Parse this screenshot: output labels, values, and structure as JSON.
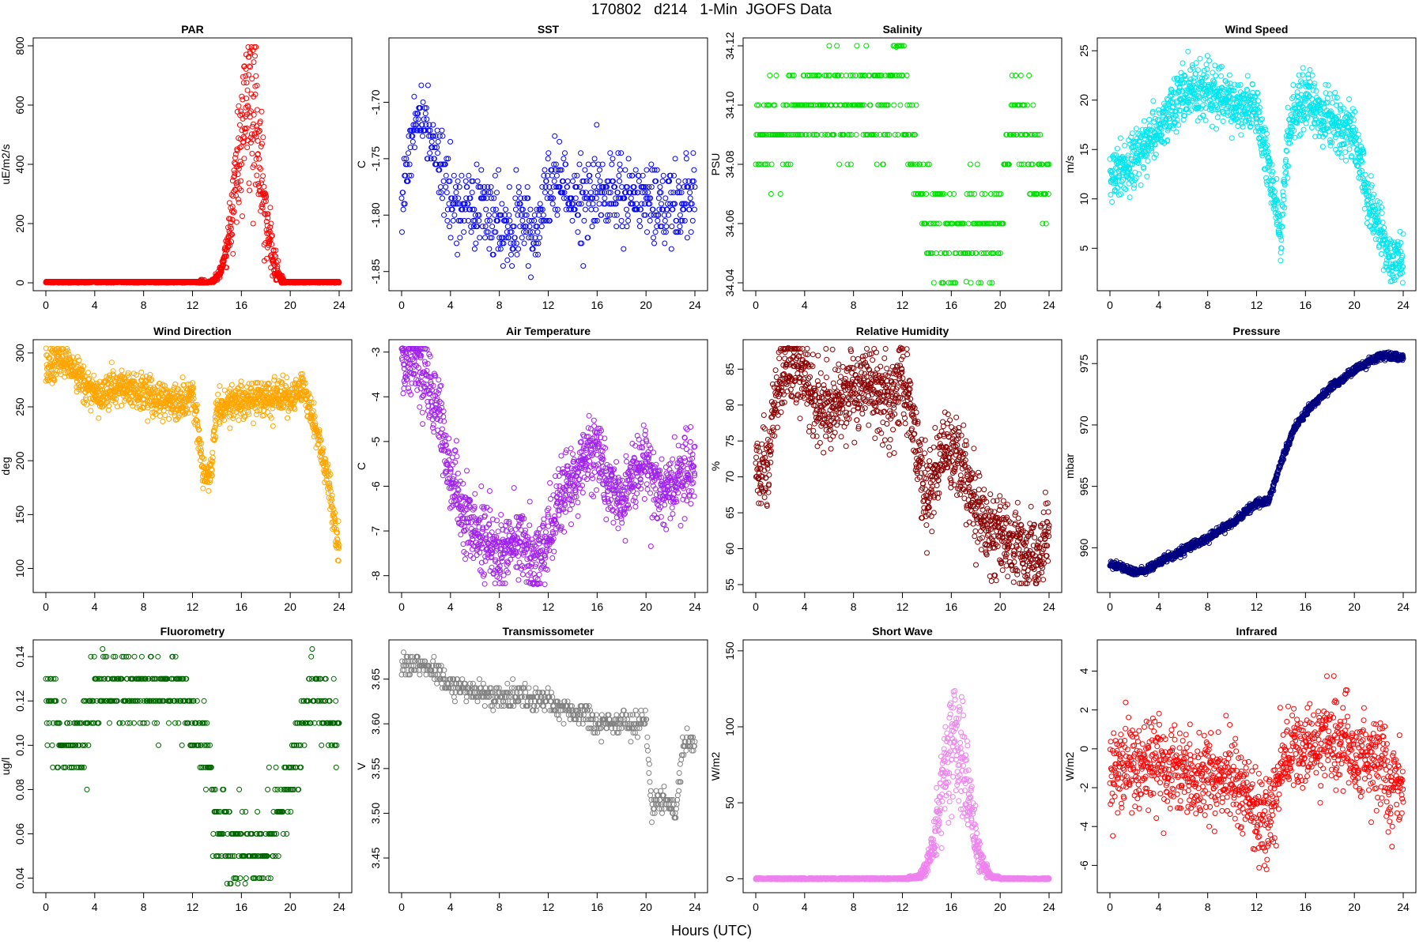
{
  "figure": {
    "title": "170802   d214   1-Min  JGOFS Data",
    "common_xlabel": "Hours (UTC)"
  },
  "chart_data": [
    {
      "type": "scatter",
      "title": "PAR",
      "ylabel": "uE/m2/s",
      "xlabel": "",
      "color": "#ff0000",
      "xlim": [
        0,
        24
      ],
      "ylim": [
        0,
        800
      ],
      "xticks": [
        0,
        4,
        8,
        12,
        16,
        20,
        24
      ],
      "yticks": [
        0,
        200,
        400,
        600,
        800
      ],
      "ytick_labels": [
        "0",
        "200",
        "400",
        "600",
        "800"
      ],
      "points": {
        "mode": "diurnal",
        "base": 0,
        "start": 12.5,
        "end": 19.5,
        "peak": 16.8,
        "amp": 650,
        "noise": 140,
        "spread": 1.6,
        "n": 1440
      }
    },
    {
      "type": "scatter",
      "title": "SST",
      "ylabel": "C",
      "xlabel": "",
      "color": "#0000ff",
      "xlim": [
        0,
        24
      ],
      "ylim": [
        -1.86,
        -1.65
      ],
      "xticks": [
        0,
        4,
        8,
        12,
        16,
        20,
        24
      ],
      "yticks": [
        -1.85,
        -1.8,
        -1.75,
        -1.7
      ],
      "ytick_labels": [
        "-1.85",
        "-1.80",
        "-1.75",
        "-1.70"
      ],
      "points": {
        "mode": "series",
        "x": [
          0,
          1,
          2,
          3,
          4,
          6,
          8,
          10,
          11,
          12,
          13,
          14,
          16,
          18,
          20,
          22,
          24
        ],
        "y": [
          -1.79,
          -1.72,
          -1.72,
          -1.74,
          -1.79,
          -1.79,
          -1.81,
          -1.81,
          -1.82,
          -1.78,
          -1.76,
          -1.79,
          -1.78,
          -1.78,
          -1.79,
          -1.79,
          -1.78
        ],
        "noise": 0.04,
        "quant": 0.005,
        "n": 700
      }
    },
    {
      "type": "scatter",
      "title": "Salinity",
      "ylabel": "PSU",
      "xlabel": "",
      "color": "#00dd00",
      "xlim": [
        0,
        24
      ],
      "ylim": [
        34.04,
        34.12
      ],
      "xticks": [
        0,
        4,
        8,
        12,
        16,
        20,
        24
      ],
      "yticks": [
        34.04,
        34.06,
        34.08,
        34.1,
        34.12
      ],
      "ytick_labels": [
        "34.04",
        "34.06",
        "34.08",
        "34.10",
        "34.12"
      ],
      "points": {
        "mode": "series",
        "x": [
          0,
          2,
          4,
          8,
          10,
          12,
          13,
          14,
          16,
          18,
          20,
          21,
          22,
          24
        ],
        "y": [
          34.09,
          34.09,
          34.1,
          34.1,
          34.1,
          34.11,
          34.08,
          34.06,
          34.055,
          34.06,
          34.06,
          34.1,
          34.09,
          34.07
        ],
        "noise": 0.02,
        "quant": 0.01,
        "n": 500
      }
    },
    {
      "type": "scatter",
      "title": "Wind Speed",
      "ylabel": "m/s",
      "xlabel": "",
      "color": "#00e5ee",
      "xlim": [
        0,
        24
      ],
      "ylim": [
        1.5,
        25.5
      ],
      "xticks": [
        0,
        4,
        8,
        12,
        16,
        20,
        24
      ],
      "yticks": [
        5,
        10,
        15,
        20,
        25
      ],
      "ytick_labels": [
        "5",
        "10",
        "15",
        "20",
        "25"
      ],
      "points": {
        "mode": "series",
        "x": [
          0,
          2,
          4,
          6,
          8,
          10,
          12,
          13,
          14,
          14.5,
          15,
          16,
          18,
          20,
          21,
          22,
          23,
          24
        ],
        "y": [
          12,
          14,
          17,
          21,
          21,
          20,
          19,
          13,
          6,
          15,
          19,
          20,
          18,
          16,
          11,
          7,
          4,
          4
        ],
        "noise": 3,
        "quant": 0,
        "n": 1300
      }
    },
    {
      "type": "scatter",
      "title": "Wind Direction",
      "ylabel": "deg",
      "xlabel": "",
      "color": "#ffa500",
      "xlim": [
        0,
        24
      ],
      "ylim": [
        85,
        305
      ],
      "xticks": [
        0,
        4,
        8,
        12,
        16,
        20,
        24
      ],
      "yticks": [
        100,
        150,
        200,
        250,
        300
      ],
      "ytick_labels": [
        "100",
        "150",
        "200",
        "250",
        "300"
      ],
      "points": {
        "mode": "series",
        "x": [
          0,
          1,
          2,
          3,
          4,
          6,
          8,
          10,
          11,
          12,
          13,
          13.5,
          14,
          16,
          18,
          20,
          21,
          22,
          23,
          24
        ],
        "y": [
          288,
          292,
          285,
          275,
          262,
          270,
          262,
          258,
          250,
          262,
          180,
          190,
          248,
          255,
          258,
          260,
          268,
          230,
          190,
          110
        ],
        "noise": 18,
        "quant": 0,
        "n": 1300
      }
    },
    {
      "type": "scatter",
      "title": "Air Temperature",
      "ylabel": "C",
      "xlabel": "",
      "color": "#a020f0",
      "xlim": [
        0,
        24
      ],
      "ylim": [
        -8.2,
        -2.9
      ],
      "xticks": [
        0,
        4,
        8,
        12,
        16,
        20,
        24
      ],
      "yticks": [
        -8,
        -7,
        -6,
        -5,
        -4,
        -3
      ],
      "ytick_labels": [
        "-8",
        "-7",
        "-6",
        "-5",
        "-4",
        "-3"
      ],
      "points": {
        "mode": "series",
        "x": [
          0,
          1,
          2,
          3,
          4,
          5,
          6,
          7,
          8,
          9,
          10,
          11,
          12,
          13,
          14,
          15,
          16,
          17,
          18,
          19,
          20,
          21,
          22,
          23,
          24
        ],
        "y": [
          -3.3,
          -3.1,
          -3.5,
          -4.3,
          -5.7,
          -6.6,
          -7.0,
          -7.2,
          -7.6,
          -7.1,
          -7.3,
          -7.7,
          -7.2,
          -6.2,
          -5.8,
          -5.3,
          -5.2,
          -6.0,
          -6.3,
          -5.8,
          -5.3,
          -6.2,
          -6.0,
          -5.7,
          -5.5
        ],
        "noise": 0.9,
        "quant": 0,
        "n": 1300
      }
    },
    {
      "type": "scatter",
      "title": "Relative Humidity",
      "ylabel": "%",
      "xlabel": "",
      "color": "#8b0000",
      "xlim": [
        0,
        24
      ],
      "ylim": [
        55,
        88
      ],
      "xticks": [
        0,
        4,
        8,
        12,
        16,
        20,
        24
      ],
      "yticks": [
        55,
        60,
        65,
        70,
        75,
        80,
        85
      ],
      "ytick_labels": [
        "55",
        "60",
        "65",
        "70",
        "75",
        "80",
        "85"
      ],
      "points": {
        "mode": "series",
        "x": [
          0,
          1,
          2,
          3,
          4,
          5,
          6,
          7,
          8,
          9,
          10,
          11,
          12,
          13,
          14,
          15,
          16,
          17,
          18,
          19,
          20,
          21,
          22,
          23,
          24
        ],
        "y": [
          72,
          71,
          84,
          86,
          84,
          80,
          79,
          81,
          82,
          84,
          81,
          80,
          84,
          76,
          66,
          73,
          74,
          71,
          66,
          63,
          62,
          61,
          60,
          58,
          62
        ],
        "noise": 6,
        "quant": 0,
        "n": 1300
      }
    },
    {
      "type": "scatter",
      "title": "Pressure",
      "ylabel": "mbar",
      "xlabel": "",
      "color": "#000080",
      "xlim": [
        0,
        24
      ],
      "ylim": [
        957,
        976.3
      ],
      "xticks": [
        0,
        4,
        8,
        12,
        16,
        20,
        24
      ],
      "yticks": [
        960,
        965,
        970,
        975
      ],
      "ytick_labels": [
        "960",
        "965",
        "970",
        "975"
      ],
      "points": {
        "mode": "series",
        "x": [
          0,
          1,
          2,
          3,
          4,
          6,
          8,
          10,
          12,
          13,
          14,
          15,
          16,
          18,
          20,
          22,
          23,
          24
        ],
        "y": [
          958.6,
          958.4,
          958.0,
          958.2,
          958.8,
          959.8,
          960.8,
          962.0,
          963.7,
          963.8,
          967.0,
          969.5,
          971.0,
          973.0,
          974.5,
          975.6,
          975.6,
          975.4
        ],
        "noise": 0.35,
        "quant": 0,
        "n": 1300
      }
    },
    {
      "type": "scatter",
      "title": "Fluorometry",
      "ylabel": "ug/l",
      "xlabel": "",
      "color": "#006400",
      "xlim": [
        0,
        24
      ],
      "ylim": [
        0.037,
        0.144
      ],
      "xticks": [
        0,
        4,
        8,
        12,
        16,
        20,
        24
      ],
      "yticks": [
        0.04,
        0.06,
        0.08,
        0.1,
        0.12,
        0.14
      ],
      "ytick_labels": [
        "0.04",
        "0.06",
        "0.08",
        "0.10",
        "0.12",
        "0.14"
      ],
      "points": {
        "mode": "series",
        "x": [
          0,
          1,
          2,
          3,
          4,
          6,
          8,
          10,
          11,
          12,
          13,
          14,
          15,
          16,
          18,
          19,
          20,
          21,
          22,
          23,
          24
        ],
        "y": [
          0.125,
          0.1,
          0.095,
          0.1,
          0.125,
          0.125,
          0.125,
          0.125,
          0.125,
          0.11,
          0.1,
          0.065,
          0.055,
          0.05,
          0.055,
          0.07,
          0.085,
          0.11,
          0.125,
          0.115,
          0.1
        ],
        "noise": 0.02,
        "quant": 0.01,
        "n": 600
      }
    },
    {
      "type": "scatter",
      "title": "Transmissometer",
      "ylabel": "V",
      "xlabel": "",
      "color": "#808080",
      "xlim": [
        0,
        24
      ],
      "ylim": [
        3.42,
        3.685
      ],
      "xticks": [
        0,
        4,
        8,
        12,
        16,
        20,
        24
      ],
      "yticks": [
        3.45,
        3.5,
        3.55,
        3.6,
        3.65
      ],
      "ytick_labels": [
        "3.45",
        "3.50",
        "3.55",
        "3.60",
        "3.65"
      ],
      "points": {
        "mode": "series",
        "x": [
          0,
          2,
          4,
          6,
          8,
          10,
          12,
          14,
          16,
          18,
          20,
          20.5,
          21.5,
          22.5,
          23,
          24
        ],
        "y": [
          3.665,
          3.665,
          3.645,
          3.635,
          3.63,
          3.63,
          3.625,
          3.615,
          3.6,
          3.6,
          3.6,
          3.5,
          3.52,
          3.5,
          3.58,
          3.58
        ],
        "noise": 0.015,
        "quant": 0.005,
        "n": 600
      }
    },
    {
      "type": "scatter",
      "title": "Short Wave",
      "ylabel": "W/m2",
      "xlabel": "",
      "color": "#ee82ee",
      "xlim": [
        0,
        24
      ],
      "ylim": [
        -4,
        152
      ],
      "xticks": [
        0,
        4,
        8,
        12,
        16,
        20,
        24
      ],
      "yticks": [
        0,
        50,
        100,
        150
      ],
      "ytick_labels": [
        "0",
        "50",
        "100",
        "150"
      ],
      "points": {
        "mode": "diurnal",
        "base": 0,
        "start": 12.5,
        "end": 20.0,
        "peak": 16.3,
        "amp": 95,
        "noise": 22,
        "spread": 1.7,
        "n": 1440
      }
    },
    {
      "type": "scatter",
      "title": "Infrared",
      "ylabel": "W/m2",
      "xlabel": "",
      "color": "#ff0000",
      "xlim": [
        0,
        24
      ],
      "ylim": [
        -7,
        5.2
      ],
      "xticks": [
        0,
        4,
        8,
        12,
        16,
        20,
        24
      ],
      "yticks": [
        -6,
        -4,
        -2,
        0,
        2,
        4
      ],
      "ytick_labels": [
        "-6",
        "-4",
        "-2",
        "0",
        "2",
        "4"
      ],
      "points": {
        "mode": "series",
        "x": [
          0,
          2,
          4,
          6,
          8,
          10,
          11,
          12,
          13,
          14,
          15,
          16,
          18,
          20,
          22,
          23,
          24
        ],
        "y": [
          -1,
          -0.8,
          -0.8,
          -1.2,
          -1.5,
          -1.5,
          -2,
          -3.5,
          -3.5,
          -1,
          0,
          0,
          0.5,
          -0.3,
          -0.5,
          -1.5,
          -2
        ],
        "noise": 2.4,
        "quant": 0,
        "n": 1100
      }
    }
  ]
}
